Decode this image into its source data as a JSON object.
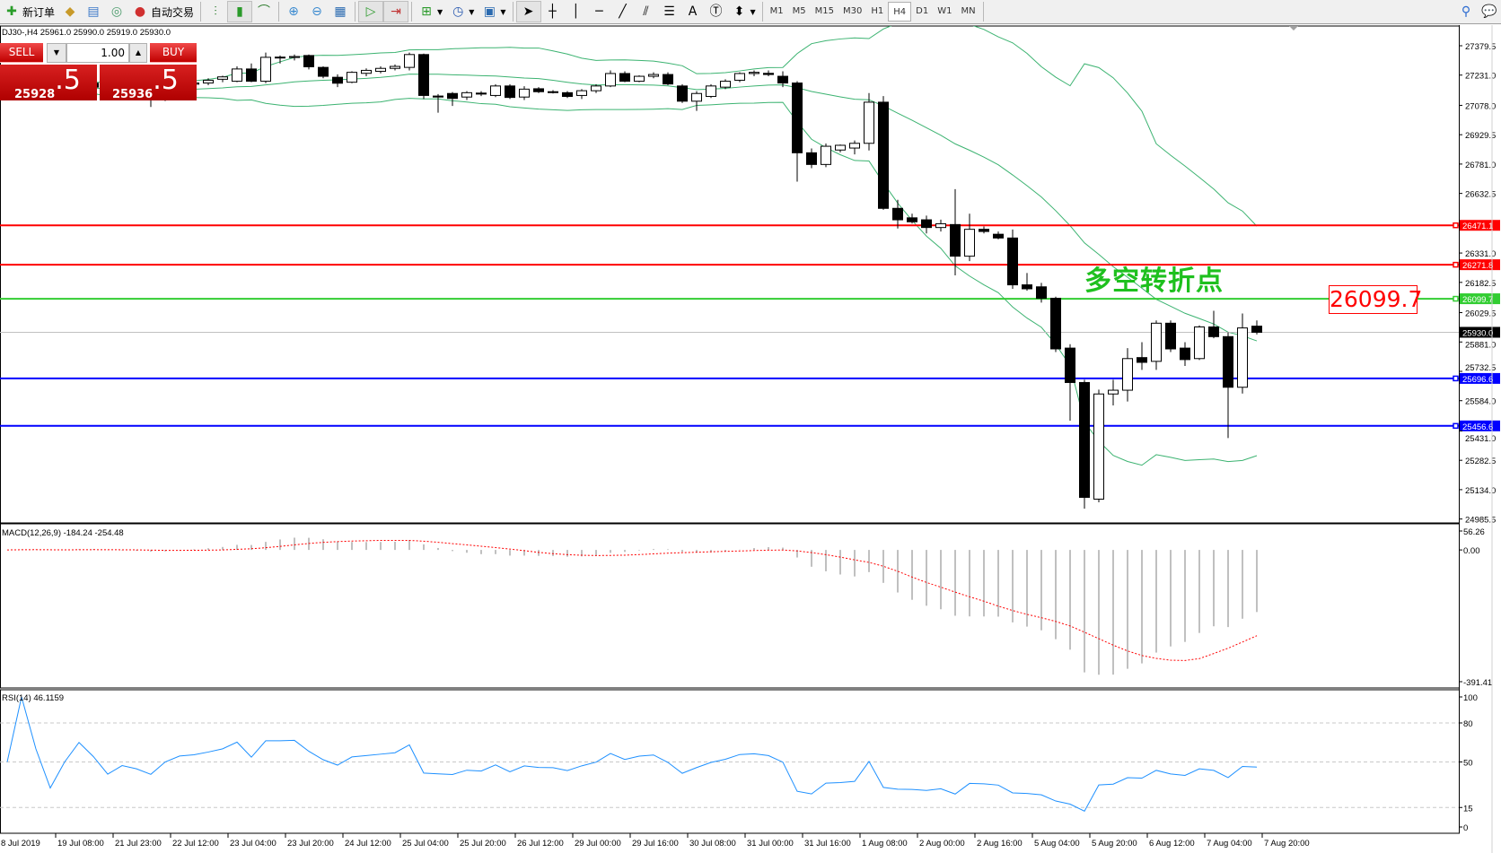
{
  "toolbar": {
    "new_order": "新订单",
    "auto_trading": "自动交易",
    "timeframes": [
      "M1",
      "M5",
      "M15",
      "M30",
      "H1",
      "H4",
      "D1",
      "W1",
      "MN"
    ],
    "active_timeframe": "H4"
  },
  "chart": {
    "header": "DJ30-,H4  25961.0 25990.0 25919.0 25930.0",
    "symbol": "DJ30-",
    "timeframe": "H4",
    "trade_panel": {
      "sell_label": "SELL",
      "buy_label": "BUY",
      "lot": "1.00",
      "sell_big": "25928",
      "sell_small": ".5",
      "buy_big": "25936",
      "buy_small": ".5"
    },
    "annotation": "多空转折点",
    "price_box": "26099.7",
    "price_axis": [
      "27379.5",
      "27231.0",
      "27078.0",
      "26929.5",
      "26781.0",
      "26632.5",
      "26331.0",
      "26182.5",
      "26029.5",
      "25881.0",
      "25732.5",
      "25584.0",
      "25431.0",
      "25282.5",
      "25134.0",
      "24985.5"
    ],
    "hlines": [
      {
        "price": 26471.1,
        "label": "26471.1",
        "color": "#ff0000"
      },
      {
        "price": 26271.8,
        "label": "26271.8",
        "color": "#ff0000"
      },
      {
        "price": 26099.7,
        "label": "26099.7",
        "color": "#32cd32"
      },
      {
        "price": 25696.6,
        "label": "25696.6",
        "color": "#0000ff"
      },
      {
        "price": 25456.6,
        "label": "25456.6",
        "color": "#0000ff"
      }
    ],
    "current_price": {
      "price": 25930.0,
      "label": "25930.0"
    },
    "bollinger_color": "#3cb371",
    "candles": [
      [
        27150,
        27180,
        27120,
        27160
      ],
      [
        27160,
        27190,
        27140,
        27175
      ],
      [
        27175,
        27200,
        27150,
        27165
      ],
      [
        27165,
        27185,
        27130,
        27140
      ],
      [
        27140,
        27170,
        27120,
        27160
      ],
      [
        27160,
        27200,
        27150,
        27190
      ],
      [
        27190,
        27210,
        27160,
        27170
      ],
      [
        27170,
        27180,
        27120,
        27130
      ],
      [
        27130,
        27160,
        27110,
        27150
      ],
      [
        27150,
        27175,
        27130,
        27140
      ],
      [
        27140,
        27160,
        27070,
        27120
      ],
      [
        27120,
        27170,
        27100,
        27160
      ],
      [
        27160,
        27190,
        27150,
        27185
      ],
      [
        27185,
        27200,
        27170,
        27191
      ],
      [
        27191,
        27215,
        27180,
        27205
      ],
      [
        27210,
        27228,
        27195,
        27222
      ],
      [
        27200,
        27275,
        27195,
        27262
      ],
      [
        27262,
        27290,
        27195,
        27200
      ],
      [
        27200,
        27345,
        27190,
        27321
      ],
      [
        27318,
        27330,
        27290,
        27322
      ],
      [
        27320,
        27335,
        27305,
        27325
      ],
      [
        27330,
        27335,
        27260,
        27273
      ],
      [
        27270,
        27275,
        27215,
        27225
      ],
      [
        27220,
        27235,
        27170,
        27190
      ],
      [
        27195,
        27250,
        27190,
        27245
      ],
      [
        27240,
        27265,
        27225,
        27255
      ],
      [
        27250,
        27275,
        27240,
        27265
      ],
      [
        27265,
        27285,
        27255,
        27275
      ],
      [
        27270,
        27345,
        27255,
        27335
      ],
      [
        27335,
        27340,
        27110,
        27128
      ],
      [
        27125,
        27135,
        27041,
        27120
      ],
      [
        27138,
        27145,
        27075,
        27113
      ],
      [
        27120,
        27150,
        27105,
        27142
      ],
      [
        27140,
        27150,
        27125,
        27135
      ],
      [
        27128,
        27185,
        27120,
        27176
      ],
      [
        27176,
        27185,
        27110,
        27118
      ],
      [
        27120,
        27175,
        27105,
        27160
      ],
      [
        27162,
        27170,
        27140,
        27147
      ],
      [
        27147,
        27155,
        27138,
        27145
      ],
      [
        27142,
        27150,
        27115,
        27123
      ],
      [
        27128,
        27160,
        27110,
        27152
      ],
      [
        27152,
        27185,
        27140,
        27176
      ],
      [
        27176,
        27255,
        27170,
        27239
      ],
      [
        27239,
        27250,
        27195,
        27200
      ],
      [
        27200,
        27230,
        27195,
        27225
      ],
      [
        27225,
        27245,
        27215,
        27234
      ],
      [
        27234,
        27245,
        27180,
        27186
      ],
      [
        27176,
        27185,
        27090,
        27099
      ],
      [
        27099,
        27150,
        27050,
        27138
      ],
      [
        27123,
        27185,
        27115,
        27176
      ],
      [
        27170,
        27210,
        27160,
        27200
      ],
      [
        27205,
        27245,
        27195,
        27239
      ],
      [
        27239,
        27255,
        27225,
        27245
      ],
      [
        27240,
        27255,
        27225,
        27234
      ],
      [
        27225,
        27250,
        27170,
        27191
      ],
      [
        27191,
        27200,
        26692,
        26838
      ],
      [
        26838,
        26860,
        26760,
        26779
      ],
      [
        26779,
        26885,
        26765,
        26871
      ],
      [
        26852,
        26880,
        26840,
        26876
      ],
      [
        26862,
        26900,
        26830,
        26886
      ],
      [
        26886,
        27140,
        26850,
        27094
      ],
      [
        27094,
        27125,
        26550,
        26557
      ],
      [
        26557,
        26600,
        26455,
        26499
      ],
      [
        26509,
        26530,
        26480,
        26489
      ],
      [
        26499,
        26520,
        26430,
        26460
      ],
      [
        26460,
        26500,
        26440,
        26479
      ],
      [
        26475,
        26654,
        26218,
        26315
      ],
      [
        26315,
        26530,
        26290,
        26451
      ],
      [
        26451,
        26465,
        26430,
        26440
      ],
      [
        26426,
        26440,
        26400,
        26407
      ],
      [
        26407,
        26450,
        26150,
        26170
      ],
      [
        26170,
        26230,
        26140,
        26150
      ],
      [
        26160,
        26180,
        26080,
        26102
      ],
      [
        26102,
        26110,
        25830,
        25846
      ],
      [
        25850,
        25870,
        25483,
        25676
      ],
      [
        25676,
        25690,
        25038,
        25095
      ],
      [
        25086,
        25640,
        25070,
        25618
      ],
      [
        25618,
        25690,
        25560,
        25637
      ],
      [
        25637,
        25850,
        25580,
        25797
      ],
      [
        25802,
        25880,
        25740,
        25778
      ],
      [
        25783,
        25990,
        25740,
        25976
      ],
      [
        25976,
        25990,
        25830,
        25846
      ],
      [
        25850,
        25880,
        25760,
        25792
      ],
      [
        25797,
        25965,
        25790,
        25957
      ],
      [
        25957,
        26039,
        25900,
        25908
      ],
      [
        25908,
        25930,
        25395,
        25652
      ],
      [
        25652,
        26025,
        25620,
        25952
      ],
      [
        25961,
        25990,
        25919,
        25930
      ]
    ]
  },
  "macd": {
    "label": "MACD(12,26,9) -184.24 -254.48",
    "axis": [
      "56.26",
      "0.00",
      "-391.41"
    ],
    "range": [
      -391.41,
      56.26
    ],
    "hist_color": "#c0c0c0",
    "signal_color": "#ff0000"
  },
  "rsi": {
    "label": "RSI(14) 46.1159",
    "axis": [
      "100",
      "80",
      "50",
      "15",
      "0"
    ],
    "levels": [
      80,
      50,
      15
    ],
    "line_color": "#1e90ff"
  },
  "time_axis": [
    "8 Jul 2019",
    "19 Jul 08:00",
    "21 Jul 23:00",
    "22 Jul 12:00",
    "23 Jul 04:00",
    "23 Jul 20:00",
    "24 Jul 12:00",
    "25 Jul 04:00",
    "25 Jul 20:00",
    "26 Jul 12:00",
    "29 Jul 00:00",
    "29 Jul 16:00",
    "30 Jul 08:00",
    "31 Jul 00:00",
    "31 Jul 16:00",
    "1 Aug 08:00",
    "2 Aug 00:00",
    "2 Aug 16:00",
    "5 Aug 04:00",
    "5 Aug 20:00",
    "6 Aug 12:00",
    "7 Aug 04:00",
    "7 Aug 20:00"
  ]
}
